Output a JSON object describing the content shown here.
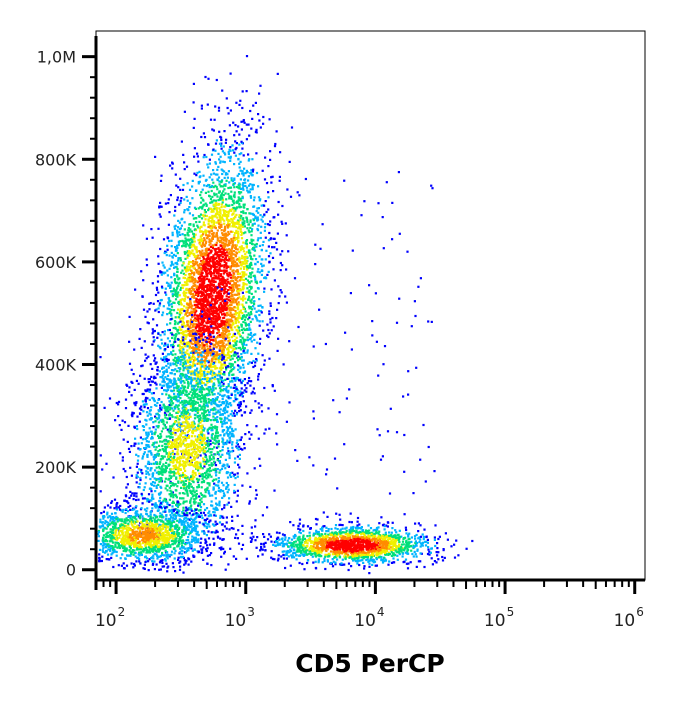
{
  "chart_data": {
    "type": "scatter",
    "style": "flow-cytometry density dot plot (pseudocolor)",
    "xlabel": "CD5 PerCP",
    "ylabel": "",
    "x_scale": "log",
    "xlim": [
      70,
      1200000
    ],
    "ylim": [
      -20000,
      1050000
    ],
    "x_ticks": [
      {
        "value": 100,
        "base": "10",
        "exp": "2"
      },
      {
        "value": 1000,
        "base": "10",
        "exp": "3"
      },
      {
        "value": 10000,
        "base": "10",
        "exp": "4"
      },
      {
        "value": 100000,
        "base": "10",
        "exp": "5"
      },
      {
        "value": 1000000,
        "base": "10",
        "exp": "6"
      }
    ],
    "y_ticks": [
      {
        "value": 0,
        "label": "0"
      },
      {
        "value": 200000,
        "label": "200K"
      },
      {
        "value": 400000,
        "label": "400K"
      },
      {
        "value": 600000,
        "label": "600K"
      },
      {
        "value": 800000,
        "label": "800K"
      },
      {
        "value": 1000000,
        "label": "1,0M"
      }
    ],
    "density_colors": [
      "#0000ff",
      "#00b4ff",
      "#00e07a",
      "#f0f000",
      "#ff8c00",
      "#ff0000"
    ],
    "populations": [
      {
        "x_center": 550,
        "y_center": 540000,
        "peak_density": 1.0
      },
      {
        "x_center": 350,
        "y_center": 240000,
        "peak_density": 0.55
      },
      {
        "x_center": 160,
        "y_center": 70000,
        "peak_density": 0.7
      },
      {
        "x_center": 6500,
        "y_center": 50000,
        "peak_density": 1.0
      }
    ],
    "grid": false,
    "legend": "none"
  }
}
